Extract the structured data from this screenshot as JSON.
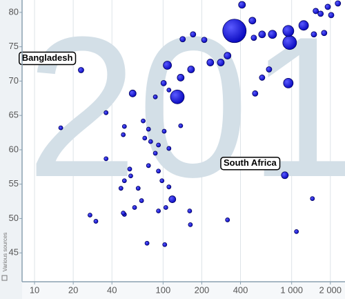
{
  "chart_data": {
    "type": "scatter",
    "watermark": "201",
    "source_note": "Various sources",
    "log_x": true,
    "grid_x": true,
    "color": "#1f1fe6",
    "xlim": [
      8,
      2600
    ],
    "ylim": [
      40.8,
      81.8
    ],
    "xticks": [
      10,
      20,
      40,
      100,
      200,
      400,
      {
        "value": 1000,
        "label": "1 000"
      },
      {
        "value": 2000,
        "label": "2 000"
      }
    ],
    "yticks": [
      45,
      50,
      55,
      60,
      65,
      70,
      75,
      80
    ],
    "x": [
      23,
      885,
      359,
      129,
      108,
      411,
      965,
      942,
      1240,
      709,
      589,
      495,
      508,
      281,
      233,
      317,
      209,
      171,
      142,
      165,
      137,
      58,
      101,
      111,
      87,
      942,
      520,
      1540,
      1910,
      2290,
      1680,
      2030,
      1790,
      1490,
      667,
      589,
      36,
      16,
      50,
      49,
      70,
      77,
      80,
      72,
      92,
      111,
      87,
      36,
      55,
      56,
      92,
      77,
      137,
      102,
      50,
      47,
      64,
      98,
      111,
      68,
      118,
      60,
      105,
      50,
      92,
      27,
      30,
      49,
      161,
      317,
      163,
      75,
      103,
      1090,
      1450
    ],
    "values": [
      71.6,
      56.3,
      77.3,
      67.7,
      72.3,
      81.1,
      75.6,
      77.3,
      78.1,
      76.8,
      76.8,
      78.8,
      76.3,
      72.7,
      72.7,
      73.7,
      76.0,
      76.8,
      76.1,
      71.7,
      70.5,
      68.2,
      69.7,
      68.7,
      67.7,
      69.7,
      68.2,
      80.2,
      80.8,
      81.3,
      79.8,
      79.6,
      77.0,
      76.8,
      71.7,
      70.5,
      65.4,
      63.2,
      63.4,
      62.2,
      64.2,
      63.0,
      61.2,
      61.7,
      60.7,
      60.2,
      59.5,
      58.7,
      57.2,
      56.2,
      56.9,
      57.7,
      63.5,
      62.7,
      55.5,
      54.4,
      54.4,
      55.5,
      54.6,
      52.6,
      52.8,
      51.6,
      51.6,
      50.6,
      51.1,
      50.5,
      49.6,
      50.8,
      51.1,
      49.8,
      49.1,
      46.4,
      46.2,
      48.1,
      52.9
    ],
    "sizes": [
      4,
      5,
      17,
      10,
      6,
      5,
      10,
      8,
      7,
      6,
      5,
      5,
      4,
      5,
      5,
      5,
      4,
      4,
      4,
      5,
      5,
      5,
      4,
      3,
      3,
      7,
      4,
      4,
      4,
      4,
      4,
      4,
      4,
      4,
      4,
      4,
      3,
      3,
      3,
      3,
      3,
      3,
      3,
      3,
      3,
      3,
      3,
      3,
      3,
      3,
      3,
      3,
      3,
      3,
      3,
      3,
      3,
      3,
      3,
      3,
      5,
      3,
      3,
      3,
      3,
      3,
      3,
      3,
      3,
      3,
      3,
      3,
      3,
      3,
      3
    ],
    "annotations": [
      {
        "text": "Bangladesh",
        "x": 23,
        "y": 71.6
      },
      {
        "text": "South Africa",
        "x": 885,
        "y": 56.3
      }
    ]
  }
}
